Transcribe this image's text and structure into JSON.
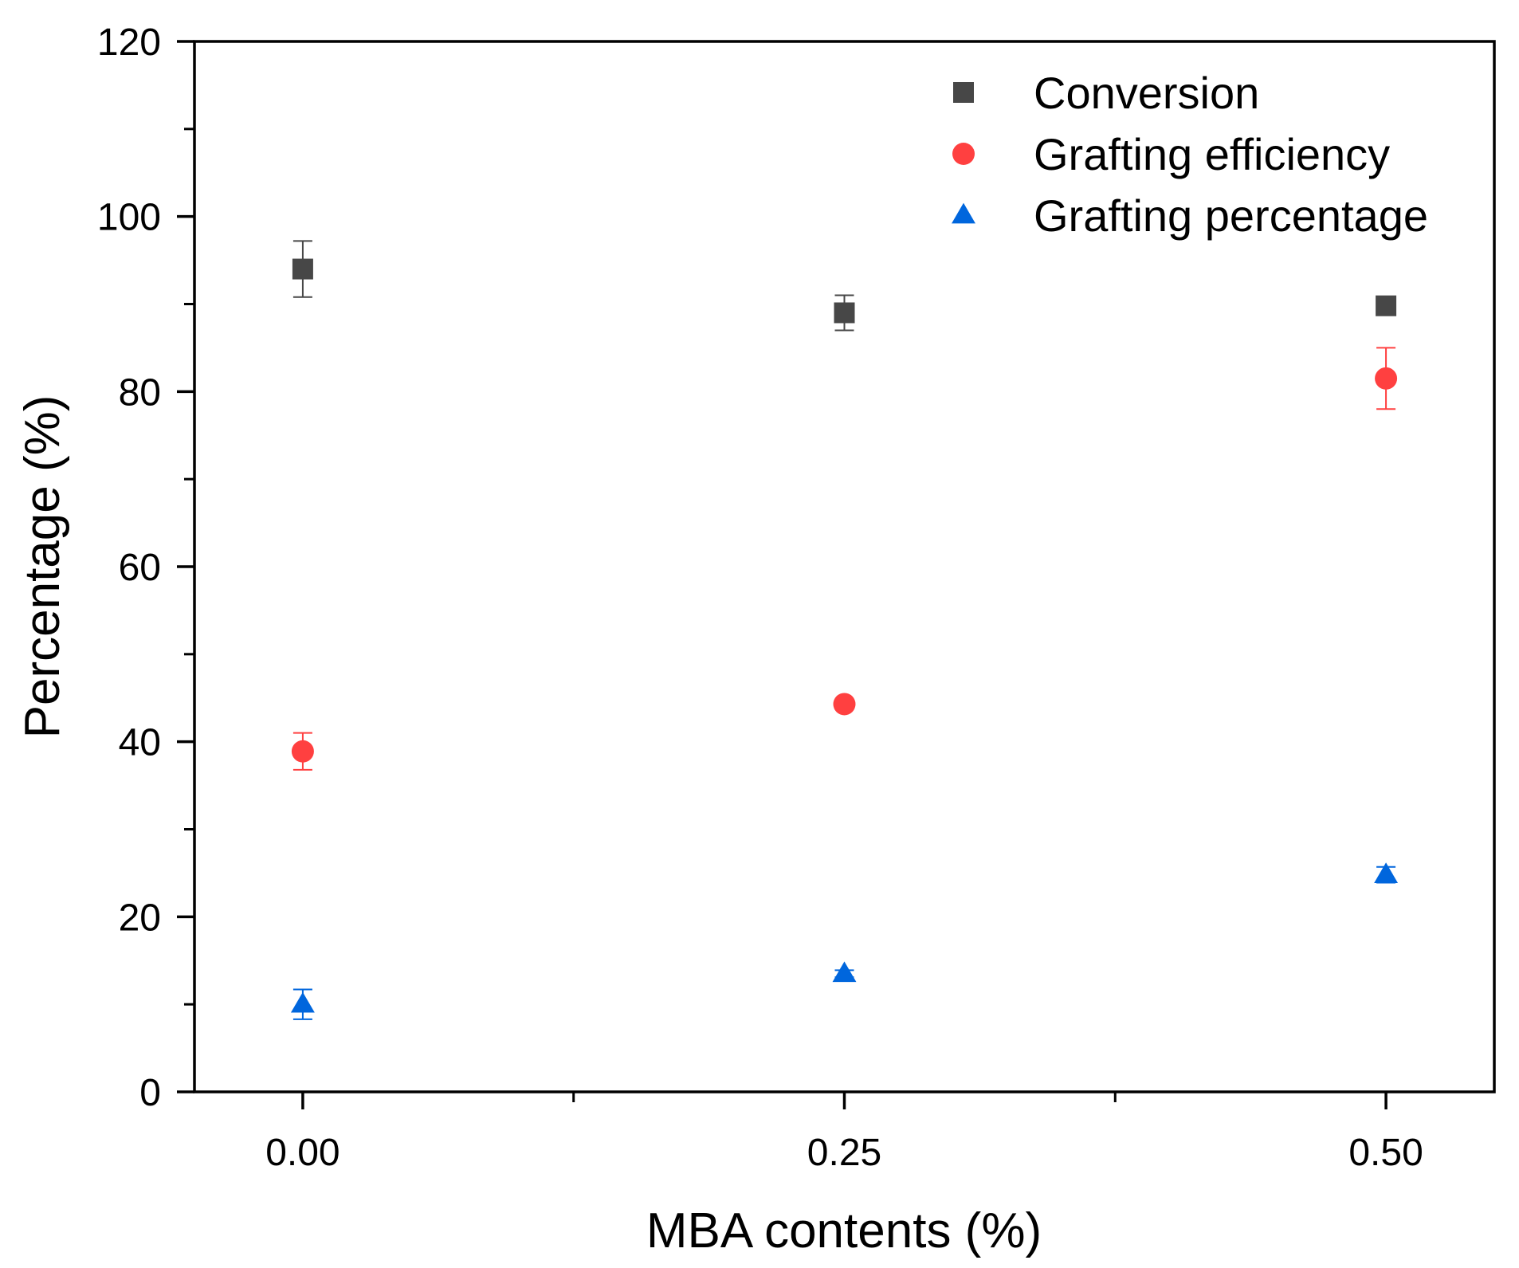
{
  "chart_data": {
    "type": "scatter",
    "title": "",
    "xlabel": "MBA contents (%)",
    "ylabel": "Percentage (%)",
    "xlim": [
      -0.05,
      0.55
    ],
    "ylim": [
      0,
      120
    ],
    "x_ticks": [
      0.0,
      0.25,
      0.5
    ],
    "x_tick_labels": [
      "0.00",
      "0.25",
      "0.50"
    ],
    "x_minor_ticks": [
      0.125,
      0.375
    ],
    "y_ticks": [
      0,
      20,
      40,
      60,
      80,
      100,
      120
    ],
    "y_tick_labels": [
      "0",
      "20",
      "40",
      "60",
      "80",
      "100",
      "120"
    ],
    "y_minor_ticks": [
      10,
      30,
      50,
      70,
      90,
      110
    ],
    "grid": false,
    "legend_position": "top-right",
    "series": [
      {
        "name": "Conversion",
        "marker": "square",
        "color": "#474747",
        "x": [
          0.0,
          0.25,
          0.5
        ],
        "y": [
          94.0,
          89.0,
          89.8
        ],
        "error": [
          3.2,
          2.0,
          0.6
        ]
      },
      {
        "name": "Grafting efficiency",
        "marker": "circle",
        "color": "#ff4040",
        "x": [
          0.0,
          0.25,
          0.5
        ],
        "y": [
          38.9,
          44.3,
          81.5
        ],
        "error": [
          2.1,
          0.6,
          3.5
        ]
      },
      {
        "name": "Grafting percentage",
        "marker": "triangle",
        "color": "#0066dd",
        "x": [
          0.0,
          0.25,
          0.5
        ],
        "y": [
          10.0,
          13.5,
          24.8
        ],
        "error": [
          1.7,
          0.4,
          0.9
        ]
      }
    ]
  }
}
